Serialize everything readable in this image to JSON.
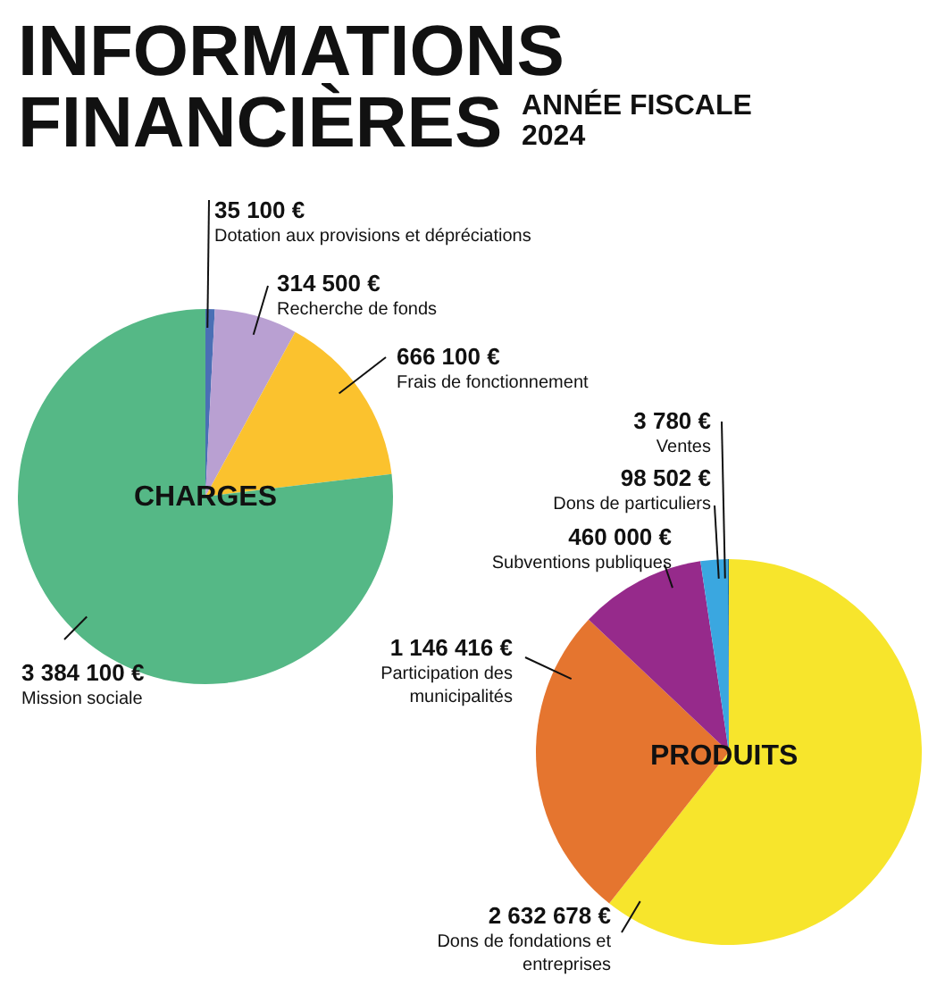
{
  "chart_data": [
    {
      "type": "pie",
      "title": "INFORMATIONS FINANCIÈRES",
      "subtitle": "ANNÉE FISCALE 2024",
      "annotations": [
        "CHARGES"
      ],
      "categories": [
        "Dotation aux provisions et dépréciations",
        "Recherche de fonds",
        "Frais de fonctionnement",
        "Mission sociale"
      ],
      "values": [
        35100,
        314500,
        666100,
        3384100
      ],
      "value_labels": [
        "35 100 €",
        "314 500 €",
        "666 100 €",
        "3 384 100 €"
      ],
      "colors": [
        "#4a6fb5",
        "#b9a0d2",
        "#fbc22e",
        "#55b886"
      ]
    },
    {
      "type": "pie",
      "annotations": [
        "PRODUITS"
      ],
      "categories": [
        "Dons de fondations et\nentreprises",
        "Participation des\nmunicipalités",
        "Subventions publiques",
        "Dons de particuliers",
        "Ventes"
      ],
      "values": [
        2632678,
        1146416,
        460000,
        98502,
        3780
      ],
      "value_labels": [
        "2 632 678 €",
        "1 146 416 €",
        "460 000 €",
        "98 502 €",
        "3 780 €"
      ],
      "colors": [
        "#f7e52c",
        "#e5752f",
        "#962a8b",
        "#3aa7e0",
        "#1f6f9f"
      ]
    }
  ]
}
